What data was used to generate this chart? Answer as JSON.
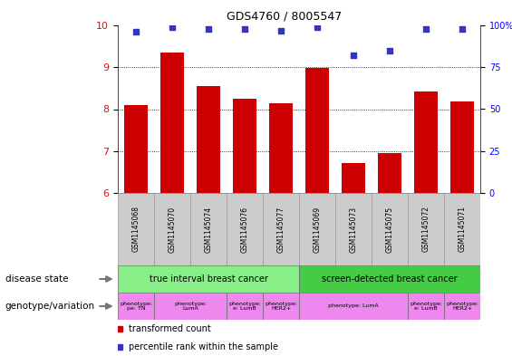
{
  "title": "GDS4760 / 8005547",
  "samples": [
    "GSM1145068",
    "GSM1145070",
    "GSM1145074",
    "GSM1145076",
    "GSM1145077",
    "GSM1145069",
    "GSM1145073",
    "GSM1145075",
    "GSM1145072",
    "GSM1145071"
  ],
  "bar_values": [
    8.1,
    9.35,
    8.55,
    8.25,
    8.15,
    8.98,
    6.72,
    6.95,
    8.42,
    8.18
  ],
  "dot_values": [
    96,
    99,
    98,
    98,
    97,
    99,
    82,
    85,
    98,
    98
  ],
  "ylim_left": [
    6,
    10
  ],
  "ylim_right": [
    0,
    100
  ],
  "yticks_left": [
    6,
    7,
    8,
    9,
    10
  ],
  "yticks_right": [
    0,
    25,
    50,
    75,
    100
  ],
  "bar_color": "#cc0000",
  "dot_color": "#3333cc",
  "bar_width": 0.65,
  "disease_state_row": [
    {
      "label": "true interval breast cancer",
      "start": 0,
      "end": 5,
      "color": "#88ee88"
    },
    {
      "label": "screen-detected breast cancer",
      "start": 5,
      "end": 10,
      "color": "#44cc44"
    }
  ],
  "genotype_row": [
    {
      "label": "phenotype:\npe: TN",
      "start": 0,
      "end": 1,
      "color": "#ee88ee"
    },
    {
      "label": "phenotype:\nLumA",
      "start": 1,
      "end": 3,
      "color": "#ee88ee"
    },
    {
      "label": "phenotype:\ne: LumB",
      "start": 3,
      "end": 4,
      "color": "#ee88ee"
    },
    {
      "label": "phenotype:\nHER2+",
      "start": 4,
      "end": 5,
      "color": "#ee88ee"
    },
    {
      "label": "phenotype: LumA",
      "start": 5,
      "end": 8,
      "color": "#ee88ee"
    },
    {
      "label": "phenotype:\ne: LumB",
      "start": 8,
      "end": 9,
      "color": "#ee88ee"
    },
    {
      "label": "phenotype:\nHER2+",
      "start": 9,
      "end": 10,
      "color": "#ee88ee"
    }
  ],
  "legend_items": [
    {
      "label": "transformed count",
      "color": "#cc0000"
    },
    {
      "label": "percentile rank within the sample",
      "color": "#3333cc"
    }
  ],
  "disease_state_label": "disease state",
  "genotype_label": "genotype/variation",
  "grid_lines": [
    7,
    8,
    9
  ],
  "sample_box_color": "#cccccc",
  "right_tick_labels": [
    "0",
    "25",
    "50",
    "75",
    "100%"
  ]
}
